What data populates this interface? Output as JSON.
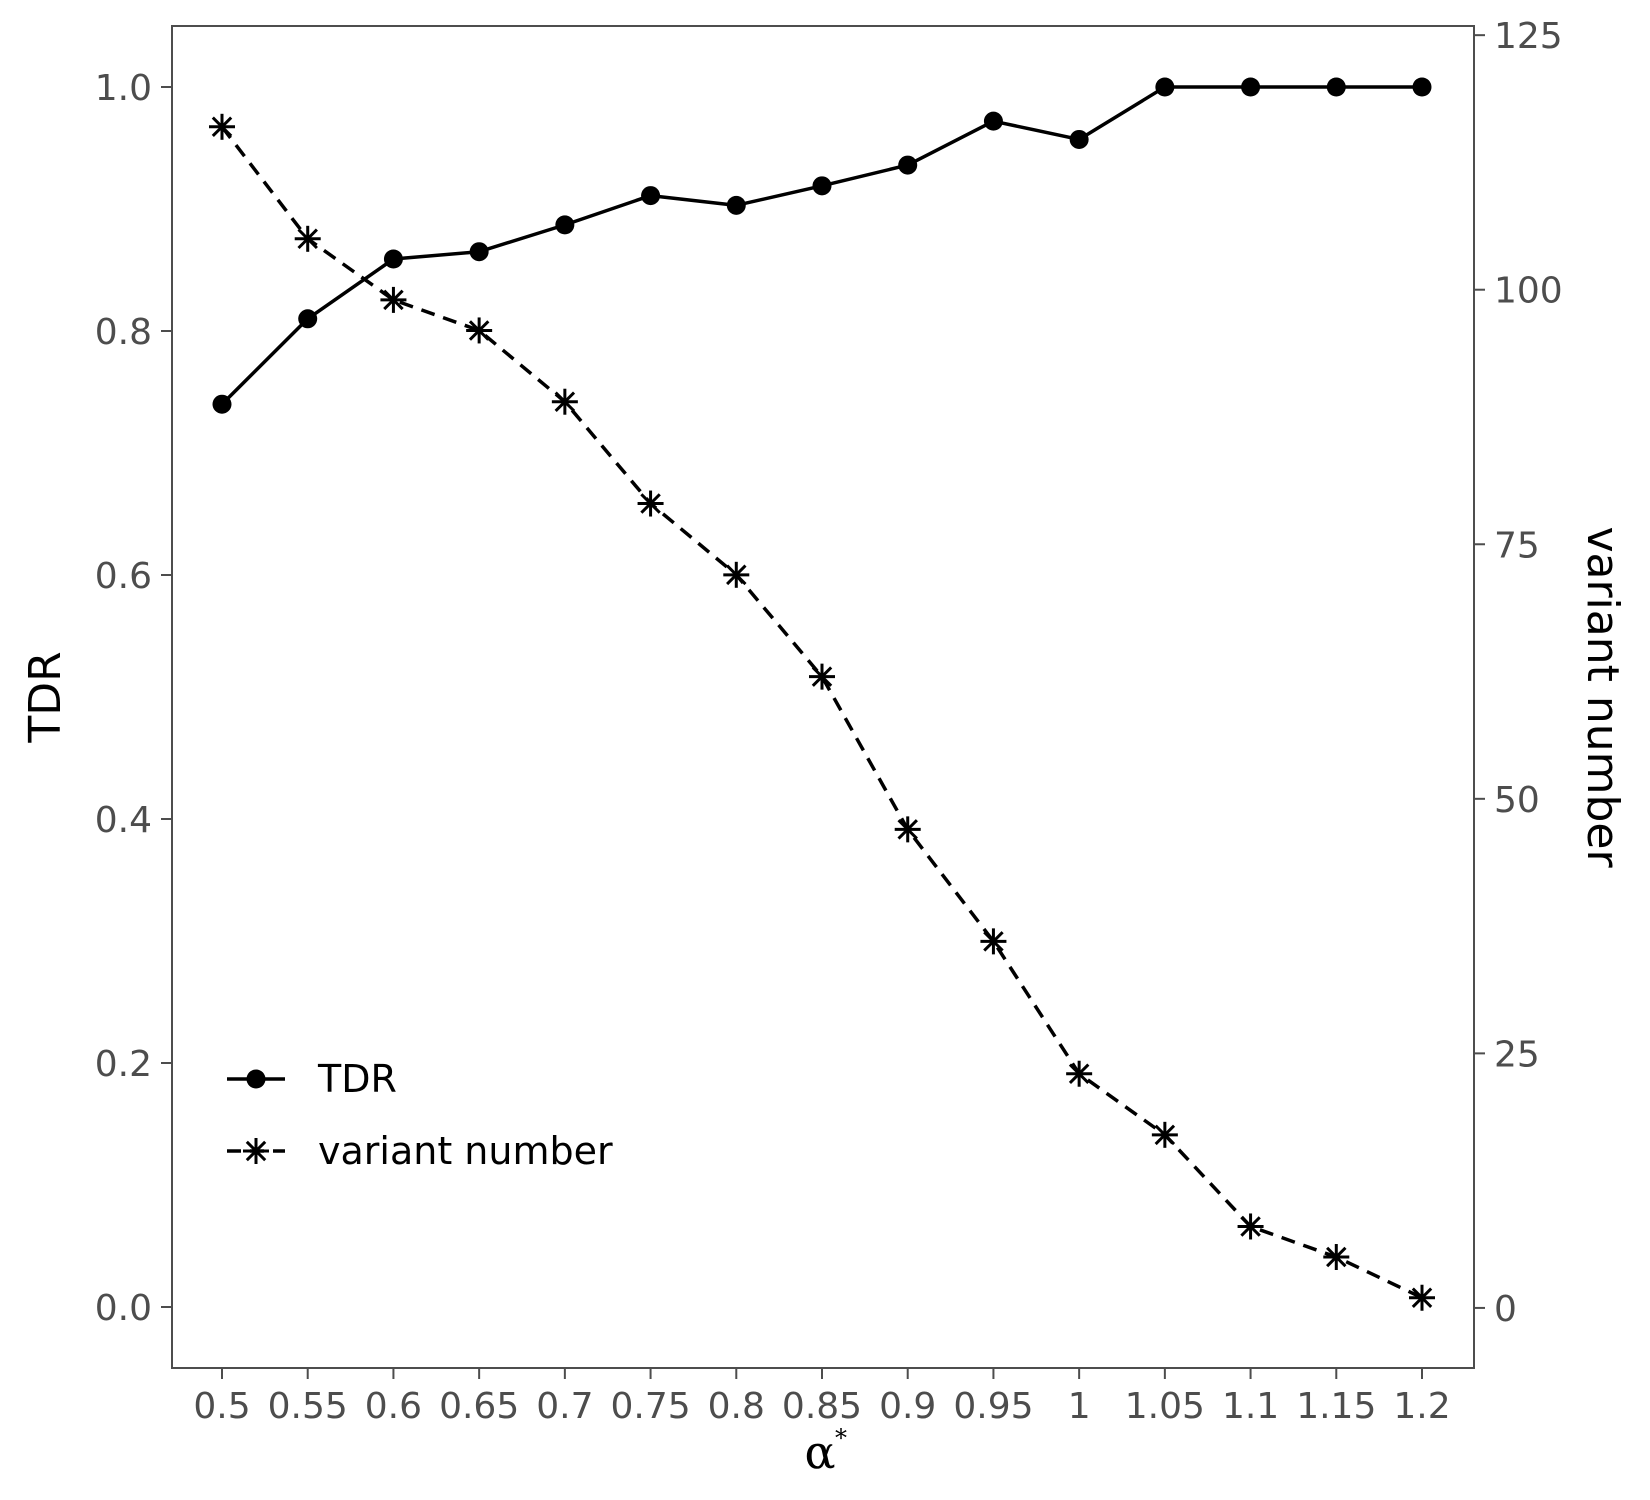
{
  "chart_data": {
    "type": "line",
    "x_categories": [
      "0.5",
      "0.55",
      "0.6",
      "0.65",
      "0.7",
      "0.75",
      "0.8",
      "0.85",
      "0.9",
      "0.95",
      "1",
      "1.05",
      "1.1",
      "1.15",
      "1.2"
    ],
    "xlabel": "α",
    "xlabel_superscript": "*",
    "ylabel_left": "TDR",
    "ylabel_right": "variant number",
    "ylim_left": [
      -0.05,
      1.05
    ],
    "ylim_right": [
      -5.9,
      125.9
    ],
    "yticks_left": [
      "0.0",
      "0.2",
      "0.4",
      "0.6",
      "0.8",
      "1.0"
    ],
    "yticks_left_values": [
      0,
      0.2,
      0.4,
      0.6,
      0.8,
      1.0
    ],
    "yticks_right": [
      "0",
      "25",
      "50",
      "75",
      "100",
      "125"
    ],
    "yticks_right_values": [
      0,
      25,
      50,
      75,
      100,
      125
    ],
    "grid": false,
    "legend_position": "bottom-left",
    "series": [
      {
        "name": "TDR",
        "axis": "left",
        "line_style": "solid",
        "marker": "circle",
        "color": "#000000",
        "values": [
          0.74,
          0.81,
          0.859,
          0.865,
          0.887,
          0.911,
          0.903,
          0.919,
          0.936,
          0.972,
          0.957,
          1.0,
          1.0,
          1.0,
          1.0
        ]
      },
      {
        "name": "variant number",
        "axis": "right",
        "line_style": "dashed",
        "marker": "asterisk",
        "color": "#000000",
        "values": [
          116,
          105,
          99,
          96,
          89,
          79,
          72,
          62,
          47,
          36,
          23,
          17,
          8,
          5,
          1
        ]
      }
    ]
  }
}
